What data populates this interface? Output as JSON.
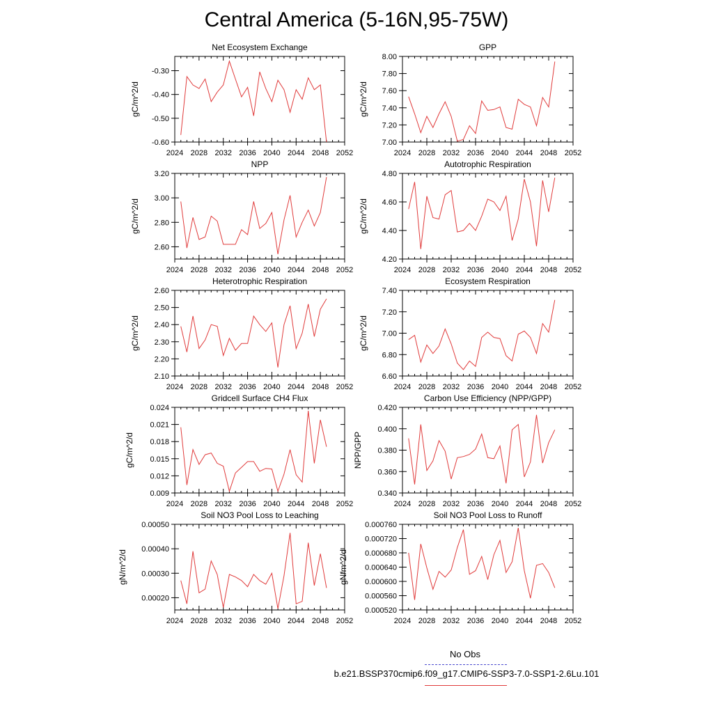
{
  "figure": {
    "title": "Central America (5-16N,95-75W)"
  },
  "legend": {
    "obs_label": "No Obs",
    "case_label": "b.e21.BSSP370cmip6.f09_g17.CMIP6-SSP3-7.0-SSP1-2.6Lu.101",
    "obs_color": "#4a4acf",
    "case_color": "#e03a3a"
  },
  "chart_data": [
    {
      "type": "line",
      "title": "Net Ecosystem Exchange",
      "ylabel": "gC/m^2/d",
      "xlim": [
        2024,
        2052
      ],
      "ylim": [
        -0.6,
        -0.24
      ],
      "x_ticks": [
        "2024",
        "2028",
        "2032",
        "2036",
        "2040",
        "2044",
        "2048",
        "2052"
      ],
      "y_ticks": [
        "-0.60",
        "-0.50",
        "-0.40",
        "-0.30"
      ],
      "y_tick_values": [
        -0.6,
        -0.5,
        -0.4,
        -0.3
      ],
      "x": [
        2025,
        2026,
        2027,
        2028,
        2029,
        2030,
        2031,
        2032,
        2033,
        2034,
        2035,
        2036,
        2037,
        2038,
        2039,
        2040,
        2041,
        2042,
        2043,
        2044,
        2045,
        2046,
        2047,
        2048,
        2049
      ],
      "series": [
        {
          "values": [
            -0.57,
            -0.325,
            -0.36,
            -0.375,
            -0.335,
            -0.43,
            -0.39,
            -0.36,
            -0.26,
            -0.335,
            -0.41,
            -0.37,
            -0.49,
            -0.305,
            -0.375,
            -0.43,
            -0.34,
            -0.38,
            -0.475,
            -0.38,
            -0.42,
            -0.33,
            -0.38,
            -0.36,
            -0.6
          ]
        }
      ]
    },
    {
      "type": "line",
      "title": "GPP",
      "ylabel": "gC/m^2/d",
      "xlim": [
        2024,
        2052
      ],
      "ylim": [
        7.0,
        8.0
      ],
      "x_ticks": [
        "2024",
        "2028",
        "2032",
        "2036",
        "2040",
        "2044",
        "2048",
        "2052"
      ],
      "y_ticks": [
        "7.00",
        "7.20",
        "7.40",
        "7.60",
        "7.80",
        "8.00"
      ],
      "y_tick_values": [
        7.0,
        7.2,
        7.4,
        7.6,
        7.8,
        8.0
      ],
      "x": [
        2025,
        2026,
        2027,
        2028,
        2029,
        2030,
        2031,
        2032,
        2033,
        2034,
        2035,
        2036,
        2037,
        2038,
        2039,
        2040,
        2041,
        2042,
        2043,
        2044,
        2045,
        2046,
        2047,
        2048,
        2049
      ],
      "series": [
        {
          "values": [
            7.53,
            7.33,
            7.11,
            7.3,
            7.17,
            7.33,
            7.47,
            7.3,
            7.01,
            7.03,
            7.19,
            7.1,
            7.48,
            7.37,
            7.38,
            7.41,
            7.17,
            7.15,
            7.5,
            7.44,
            7.41,
            7.19,
            7.52,
            7.41,
            7.94
          ]
        }
      ]
    },
    {
      "type": "line",
      "title": "NPP",
      "ylabel": "gC/m^2/d",
      "xlim": [
        2024,
        2052
      ],
      "ylim": [
        2.5,
        3.2
      ],
      "x_ticks": [
        "2024",
        "2028",
        "2032",
        "2036",
        "2040",
        "2044",
        "2048",
        "2052"
      ],
      "y_ticks": [
        "2.60",
        "2.80",
        "3.00",
        "3.20"
      ],
      "y_tick_values": [
        2.6,
        2.8,
        3.0,
        3.2
      ],
      "x": [
        2025,
        2026,
        2027,
        2028,
        2029,
        2030,
        2031,
        2032,
        2033,
        2034,
        2035,
        2036,
        2037,
        2038,
        2039,
        2040,
        2041,
        2042,
        2043,
        2044,
        2045,
        2046,
        2047,
        2048,
        2049
      ],
      "series": [
        {
          "values": [
            2.97,
            2.59,
            2.84,
            2.66,
            2.68,
            2.85,
            2.81,
            2.62,
            2.62,
            2.62,
            2.74,
            2.7,
            2.97,
            2.75,
            2.79,
            2.88,
            2.54,
            2.82,
            3.02,
            2.68,
            2.8,
            2.9,
            2.77,
            2.88,
            3.17
          ]
        }
      ]
    },
    {
      "type": "line",
      "title": "Autotrophic Respiration",
      "ylabel": "gC/m^2/d",
      "xlim": [
        2024,
        2052
      ],
      "ylim": [
        4.2,
        4.8
      ],
      "x_ticks": [
        "2024",
        "2028",
        "2032",
        "2036",
        "2040",
        "2044",
        "2048",
        "2052"
      ],
      "y_ticks": [
        "4.20",
        "4.40",
        "4.60",
        "4.80"
      ],
      "y_tick_values": [
        4.2,
        4.4,
        4.6,
        4.8
      ],
      "x": [
        2025,
        2026,
        2027,
        2028,
        2029,
        2030,
        2031,
        2032,
        2033,
        2034,
        2035,
        2036,
        2037,
        2038,
        2039,
        2040,
        2041,
        2042,
        2043,
        2044,
        2045,
        2046,
        2047,
        2048,
        2049
      ],
      "series": [
        {
          "values": [
            4.55,
            4.74,
            4.27,
            4.64,
            4.49,
            4.48,
            4.65,
            4.68,
            4.39,
            4.4,
            4.45,
            4.4,
            4.5,
            4.62,
            4.6,
            4.54,
            4.64,
            4.33,
            4.48,
            4.76,
            4.6,
            4.29,
            4.75,
            4.53,
            4.77
          ]
        }
      ]
    },
    {
      "type": "line",
      "title": "Heterotrophic Respiration",
      "ylabel": "gC/m^2/d",
      "xlim": [
        2024,
        2052
      ],
      "ylim": [
        2.1,
        2.6
      ],
      "x_ticks": [
        "2024",
        "2028",
        "2032",
        "2036",
        "2040",
        "2044",
        "2048",
        "2052"
      ],
      "y_ticks": [
        "2.10",
        "2.20",
        "2.30",
        "2.40",
        "2.50",
        "2.60"
      ],
      "y_tick_values": [
        2.1,
        2.2,
        2.3,
        2.4,
        2.5,
        2.6
      ],
      "x": [
        2025,
        2026,
        2027,
        2028,
        2029,
        2030,
        2031,
        2032,
        2033,
        2034,
        2035,
        2036,
        2037,
        2038,
        2039,
        2040,
        2041,
        2042,
        2043,
        2044,
        2045,
        2046,
        2047,
        2048,
        2049
      ],
      "series": [
        {
          "values": [
            2.39,
            2.24,
            2.45,
            2.26,
            2.31,
            2.4,
            2.39,
            2.22,
            2.32,
            2.25,
            2.29,
            2.29,
            2.45,
            2.4,
            2.36,
            2.41,
            2.15,
            2.4,
            2.51,
            2.26,
            2.35,
            2.52,
            2.33,
            2.49,
            2.55
          ]
        }
      ]
    },
    {
      "type": "line",
      "title": "Ecosystem Respiration",
      "ylabel": "gC/m^2/d",
      "xlim": [
        2024,
        2052
      ],
      "ylim": [
        6.6,
        7.4
      ],
      "x_ticks": [
        "2024",
        "2028",
        "2032",
        "2036",
        "2040",
        "2044",
        "2048",
        "2052"
      ],
      "y_ticks": [
        "6.60",
        "6.80",
        "7.00",
        "7.20",
        "7.40"
      ],
      "y_tick_values": [
        6.6,
        6.8,
        7.0,
        7.2,
        7.4
      ],
      "x": [
        2025,
        2026,
        2027,
        2028,
        2029,
        2030,
        2031,
        2032,
        2033,
        2034,
        2035,
        2036,
        2037,
        2038,
        2039,
        2040,
        2041,
        2042,
        2043,
        2044,
        2045,
        2046,
        2047,
        2048,
        2049
      ],
      "series": [
        {
          "values": [
            6.94,
            6.98,
            6.73,
            6.89,
            6.81,
            6.88,
            7.04,
            6.9,
            6.72,
            6.66,
            6.74,
            6.69,
            6.96,
            7.01,
            6.96,
            6.95,
            6.79,
            6.74,
            6.99,
            7.02,
            6.96,
            6.81,
            7.09,
            7.01,
            7.31
          ]
        }
      ]
    },
    {
      "type": "line",
      "title": "Gridcell Surface CH4 Flux",
      "ylabel": "gC/m^2/d",
      "xlim": [
        2024,
        2052
      ],
      "ylim": [
        0.009,
        0.024
      ],
      "x_ticks": [
        "2024",
        "2028",
        "2032",
        "2036",
        "2040",
        "2044",
        "2048",
        "2052"
      ],
      "y_ticks": [
        "0.009",
        "0.012",
        "0.015",
        "0.018",
        "0.021",
        "0.024"
      ],
      "y_tick_values": [
        0.009,
        0.012,
        0.015,
        0.018,
        0.021,
        0.024
      ],
      "x": [
        2025,
        2026,
        2027,
        2028,
        2029,
        2030,
        2031,
        2032,
        2033,
        2034,
        2035,
        2036,
        2037,
        2038,
        2039,
        2040,
        2041,
        2042,
        2043,
        2044,
        2045,
        2046,
        2047,
        2048,
        2049
      ],
      "series": [
        {
          "values": [
            0.0205,
            0.0104,
            0.0166,
            0.014,
            0.0157,
            0.016,
            0.0142,
            0.0137,
            0.0093,
            0.0125,
            0.0135,
            0.0145,
            0.0145,
            0.0128,
            0.0133,
            0.0132,
            0.0093,
            0.0123,
            0.0166,
            0.0122,
            0.0109,
            0.0234,
            0.0142,
            0.0218,
            0.0171
          ]
        }
      ]
    },
    {
      "type": "line",
      "title": "Carbon Use Efficiency (NPP/GPP)",
      "ylabel": "NPP/GPP",
      "xlim": [
        2024,
        2052
      ],
      "ylim": [
        0.34,
        0.42
      ],
      "x_ticks": [
        "2024",
        "2028",
        "2032",
        "2036",
        "2040",
        "2044",
        "2048",
        "2052"
      ],
      "y_ticks": [
        "0.340",
        "0.360",
        "0.380",
        "0.400",
        "0.420"
      ],
      "y_tick_values": [
        0.34,
        0.36,
        0.38,
        0.4,
        0.42
      ],
      "x": [
        2025,
        2026,
        2027,
        2028,
        2029,
        2030,
        2031,
        2032,
        2033,
        2034,
        2035,
        2036,
        2037,
        2038,
        2039,
        2040,
        2041,
        2042,
        2043,
        2044,
        2045,
        2046,
        2047,
        2048,
        2049
      ],
      "series": [
        {
          "values": [
            0.391,
            0.348,
            0.404,
            0.361,
            0.37,
            0.389,
            0.379,
            0.353,
            0.373,
            0.374,
            0.376,
            0.381,
            0.395,
            0.373,
            0.372,
            0.384,
            0.349,
            0.399,
            0.404,
            0.355,
            0.369,
            0.413,
            0.368,
            0.387,
            0.399
          ]
        }
      ]
    },
    {
      "type": "line",
      "title": "Soil NO3 Pool Loss to Leaching",
      "ylabel": "gN/m^2/d",
      "xlim": [
        2024,
        2052
      ],
      "ylim": [
        0.00015,
        0.0005
      ],
      "x_ticks": [
        "2024",
        "2028",
        "2032",
        "2036",
        "2040",
        "2044",
        "2048",
        "2052"
      ],
      "y_ticks": [
        "0.00020",
        "0.00030",
        "0.00040",
        "0.00050"
      ],
      "y_tick_values": [
        0.0002,
        0.0003,
        0.0004,
        0.0005
      ],
      "x": [
        2025,
        2026,
        2027,
        2028,
        2029,
        2030,
        2031,
        2032,
        2033,
        2034,
        2035,
        2036,
        2037,
        2038,
        2039,
        2040,
        2041,
        2042,
        2043,
        2044,
        2045,
        2046,
        2047,
        2048,
        2049
      ],
      "series": [
        {
          "values": [
            0.00027,
            0.000175,
            0.00039,
            0.00022,
            0.000235,
            0.00035,
            0.000295,
            0.00016,
            0.000295,
            0.000285,
            0.00027,
            0.000245,
            0.000295,
            0.00027,
            0.000255,
            0.0003,
            0.000155,
            0.00029,
            0.000465,
            0.000175,
            0.000185,
            0.000425,
            0.00025,
            0.00038,
            0.00024
          ]
        }
      ]
    },
    {
      "type": "line",
      "title": "Soil NO3 Pool Loss to Runoff",
      "ylabel": "gN/m^2/d",
      "xlim": [
        2024,
        2052
      ],
      "ylim": [
        0.00052,
        0.00076
      ],
      "x_ticks": [
        "2024",
        "2028",
        "2032",
        "2036",
        "2040",
        "2044",
        "2048",
        "2052"
      ],
      "y_ticks": [
        "0.000520",
        "0.000560",
        "0.000600",
        "0.000640",
        "0.000680",
        "0.000720",
        "0.000760"
      ],
      "y_tick_values": [
        0.00052,
        0.00056,
        0.0006,
        0.00064,
        0.00068,
        0.00072,
        0.00076
      ],
      "x": [
        2025,
        2026,
        2027,
        2028,
        2029,
        2030,
        2031,
        2032,
        2033,
        2034,
        2035,
        2036,
        2037,
        2038,
        2039,
        2040,
        2041,
        2042,
        2043,
        2044,
        2045,
        2046,
        2047,
        2048,
        2049
      ],
      "series": [
        {
          "values": [
            0.00068,
            0.000548,
            0.000705,
            0.000638,
            0.000578,
            0.000628,
            0.000612,
            0.000632,
            0.000695,
            0.000745,
            0.00062,
            0.00063,
            0.00067,
            0.000605,
            0.000675,
            0.000715,
            0.000625,
            0.000655,
            0.00075,
            0.00063,
            0.000553,
            0.000645,
            0.00065,
            0.000625,
            0.000582
          ]
        }
      ]
    }
  ]
}
